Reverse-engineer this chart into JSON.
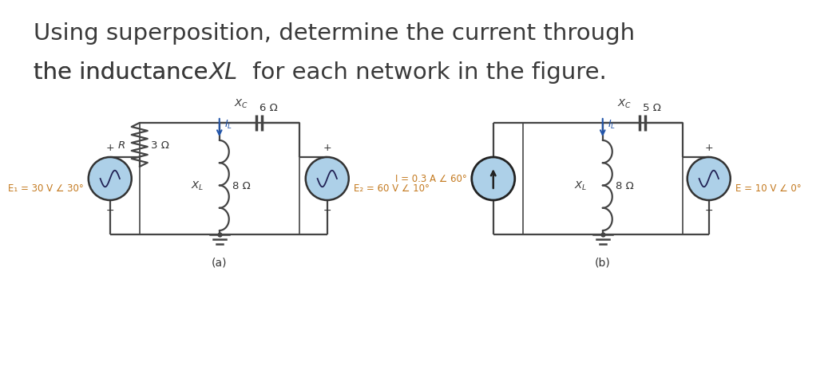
{
  "title_line1": "Using superposition, determine the current through",
  "title_line2_normal": "the inductance ",
  "title_line2_italic": "XL",
  "title_line2_end": " for each network in the figure.",
  "title_color": "#3a3a3a",
  "title_fontsize": 21,
  "background_color": "#ffffff",
  "circuit_color": "#333333",
  "wire_color": "#444444",
  "component_color": "#444444",
  "text_color": "#333333",
  "orange_text": "#c47a20",
  "blue_arrow": "#2255aa",
  "src_fill": "#add0e8",
  "src_edge": "#333333",
  "cur_src_edge": "#222222",
  "label_a": "(a)",
  "label_b": "(b)",
  "circuit_a": {
    "R_label": "R",
    "R_value": "3 Ω",
    "XL_label": "X_L",
    "XL_value": "8 Ω",
    "XC_label": "X_C",
    "XC_value": "6 Ω",
    "E1_label": "E₁ = 30 V ∠ 30°",
    "E2_label": "E₂ = 60 V ∠ 10°",
    "IL_label": "I_L"
  },
  "circuit_b": {
    "I_label": "I = 0.3 A ∠ 60°",
    "XL_label": "X_L",
    "XL_value": "8 Ω",
    "XC_label": "X_C",
    "XC_value": "5 Ω",
    "E_label": "E = 10 V ∠ 0°",
    "IL_label": "I_L"
  }
}
